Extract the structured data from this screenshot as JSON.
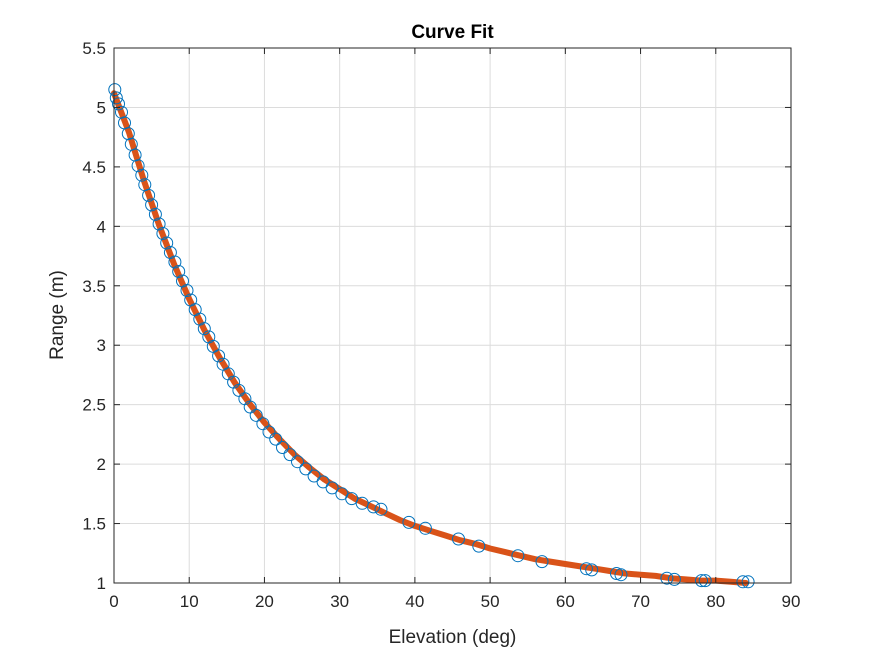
{
  "chart_data": {
    "type": "scatter",
    "title": "Curve Fit",
    "xlabel": "Elevation (deg)",
    "ylabel": "Range (m)",
    "xlim": [
      0,
      90
    ],
    "ylim": [
      1,
      5.5
    ],
    "xticks": [
      "0",
      "10",
      "20",
      "30",
      "40",
      "50",
      "60",
      "70",
      "80",
      "90"
    ],
    "yticks": [
      "1",
      "1.5",
      "2",
      "2.5",
      "3",
      "3.5",
      "4",
      "4.5",
      "5",
      "5.5"
    ],
    "grid": true,
    "legend": "none",
    "colors": {
      "points": "#0072BD",
      "fit": "#D95319"
    },
    "series": [
      {
        "kind": "points",
        "x": [
          0.1,
          0.3,
          0.6,
          1.0,
          1.4,
          1.9,
          2.3,
          2.8,
          3.2,
          3.7,
          4.1,
          4.6,
          5.0,
          5.5,
          6.0,
          6.5,
          7.0,
          7.5,
          8.1,
          8.6,
          9.1,
          9.7,
          10.2,
          10.8,
          11.4,
          12.0,
          12.6,
          13.2,
          13.9,
          14.5,
          15.2,
          15.9,
          16.6,
          17.4,
          18.1,
          18.9,
          19.8,
          20.6,
          21.5,
          22.4,
          23.4,
          24.4,
          25.5,
          26.6,
          27.8,
          29.0,
          30.3,
          31.6,
          33.0,
          34.5,
          35.5,
          39.2,
          41.4,
          45.8,
          48.5,
          53.7,
          56.9,
          62.8,
          63.5,
          66.8,
          67.4,
          73.5,
          74.5,
          78.1,
          78.6,
          83.6,
          84.3
        ],
        "y": [
          5.15,
          5.08,
          5.03,
          4.96,
          4.87,
          4.78,
          4.69,
          4.6,
          4.51,
          4.43,
          4.35,
          4.26,
          4.18,
          4.1,
          4.02,
          3.94,
          3.86,
          3.78,
          3.7,
          3.62,
          3.54,
          3.46,
          3.38,
          3.3,
          3.22,
          3.14,
          3.07,
          2.99,
          2.91,
          2.84,
          2.76,
          2.69,
          2.62,
          2.55,
          2.48,
          2.41,
          2.34,
          2.27,
          2.21,
          2.14,
          2.08,
          2.02,
          1.96,
          1.9,
          1.85,
          1.8,
          1.75,
          1.71,
          1.67,
          1.64,
          1.62,
          1.51,
          1.46,
          1.37,
          1.31,
          1.23,
          1.18,
          1.12,
          1.11,
          1.08,
          1.07,
          1.04,
          1.03,
          1.02,
          1.02,
          1.01,
          1.01
        ]
      },
      {
        "kind": "fit",
        "x": [
          0,
          2,
          4,
          6,
          8,
          10,
          12,
          14,
          16,
          18,
          20,
          22,
          24,
          26,
          28,
          30,
          32,
          34,
          36,
          38,
          40,
          42,
          44,
          46,
          48,
          50,
          52,
          54,
          56,
          58,
          60,
          62,
          64,
          66,
          68,
          70,
          72,
          74,
          76,
          78,
          80,
          82,
          84
        ],
        "y": [
          5.12,
          4.79,
          4.38,
          4.01,
          3.68,
          3.39,
          3.13,
          2.9,
          2.69,
          2.51,
          2.35,
          2.21,
          2.08,
          1.97,
          1.87,
          1.79,
          1.71,
          1.65,
          1.59,
          1.53,
          1.48,
          1.44,
          1.4,
          1.36,
          1.33,
          1.29,
          1.26,
          1.23,
          1.2,
          1.18,
          1.16,
          1.14,
          1.12,
          1.1,
          1.08,
          1.07,
          1.06,
          1.04,
          1.03,
          1.02,
          1.02,
          1.01,
          1.0
        ]
      }
    ]
  }
}
